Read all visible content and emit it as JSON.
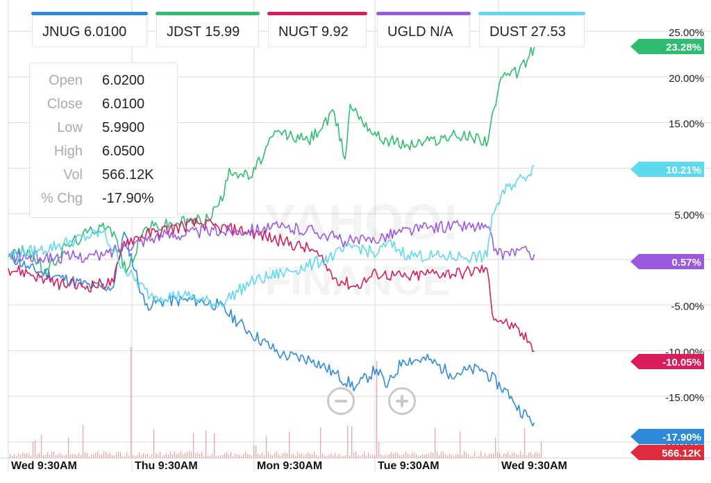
{
  "legend": [
    {
      "symbol": "JNUG",
      "value": "6.0100",
      "color": "#2e8ad8"
    },
    {
      "symbol": "JDST",
      "value": "15.99",
      "color": "#2ebd6e"
    },
    {
      "symbol": "NUGT",
      "value": "9.92",
      "color": "#d81c5c"
    },
    {
      "symbol": "UGLD",
      "value": "N/A",
      "color": "#9b59e0"
    },
    {
      "symbol": "DUST",
      "value": "27.53",
      "color": "#5fd9ee"
    }
  ],
  "ohlc": {
    "rows": [
      {
        "label": "Open",
        "value": "6.0200"
      },
      {
        "label": "Close",
        "value": "6.0100"
      },
      {
        "label": "Low",
        "value": "5.9900"
      },
      {
        "label": "High",
        "value": "6.0500"
      },
      {
        "label": "Vol",
        "value": "566.12K"
      },
      {
        "label": "% Chg",
        "value": "-17.90%"
      }
    ]
  },
  "watermark": {
    "line1": "YAHOO!",
    "line2": "FINANCE"
  },
  "zoom": {
    "out_icon": "minus-circle-icon",
    "in_icon": "plus-circle-icon"
  },
  "chart_data": {
    "type": "line",
    "x_ticks": [
      "Wed 9:30AM",
      "Thu 9:30AM",
      "Mon 9:30AM",
      "Tue 9:30AM",
      "Wed 9:30AM"
    ],
    "y_ticks": [
      "25.00%",
      "20.00%",
      "15.00%",
      "10.00%",
      "5.00%",
      "0.00%",
      "-5.00%",
      "-10.00%",
      "-15.00%",
      "-20.00%"
    ],
    "ylim": [
      -21,
      26
    ],
    "x_range": [
      0,
      5
    ],
    "grid": true,
    "series": [
      {
        "name": "JNUG",
        "color": "#2e8ad8",
        "last_label": "-17.90%",
        "points": [
          [
            0,
            0.5
          ],
          [
            0.2,
            -1
          ],
          [
            0.5,
            -2
          ],
          [
            0.8,
            -3
          ],
          [
            1,
            -3
          ],
          [
            1.1,
            3
          ],
          [
            1.3,
            -5
          ],
          [
            1.5,
            -4.5
          ],
          [
            1.8,
            -4.5
          ],
          [
            2,
            -5
          ],
          [
            2.3,
            -8
          ],
          [
            2.6,
            -10.5
          ],
          [
            2.9,
            -11
          ],
          [
            3.1,
            -12.5
          ],
          [
            3.3,
            -14
          ],
          [
            3.5,
            -12
          ],
          [
            3.6,
            -14
          ],
          [
            3.75,
            -11
          ],
          [
            4,
            -11
          ],
          [
            4.2,
            -12.5
          ],
          [
            4.5,
            -12
          ],
          [
            4.78,
            -15
          ],
          [
            4.82,
            -16
          ],
          [
            5,
            -17.9
          ]
        ]
      },
      {
        "name": "JDST",
        "color": "#2ebd6e",
        "last_label": "23.28%",
        "points": [
          [
            0,
            0.5
          ],
          [
            0.2,
            1
          ],
          [
            0.35,
            -1.5
          ],
          [
            0.55,
            1.5
          ],
          [
            0.7,
            2.5
          ],
          [
            0.9,
            4
          ],
          [
            1.02,
            2.5
          ],
          [
            1.12,
            -1.5
          ],
          [
            1.3,
            3.5
          ],
          [
            1.6,
            4
          ],
          [
            1.9,
            4.5
          ],
          [
            2.05,
            7
          ],
          [
            2.1,
            10
          ],
          [
            2.3,
            9
          ],
          [
            2.55,
            14
          ],
          [
            2.85,
            13
          ],
          [
            3.1,
            16
          ],
          [
            3.2,
            11
          ],
          [
            3.25,
            17
          ],
          [
            3.5,
            13.5
          ],
          [
            3.8,
            12.5
          ],
          [
            4,
            13
          ],
          [
            4.2,
            13.5
          ],
          [
            4.4,
            13.5
          ],
          [
            4.56,
            13
          ],
          [
            4.6,
            16
          ],
          [
            4.7,
            20
          ],
          [
            4.85,
            20.5
          ],
          [
            5,
            23.28
          ]
        ]
      },
      {
        "name": "NUGT",
        "color": "#d81c5c",
        "last_label": "-10.05%",
        "points": [
          [
            0,
            -1
          ],
          [
            0.2,
            -1.5
          ],
          [
            0.4,
            -2.5
          ],
          [
            0.7,
            -3
          ],
          [
            1,
            -2.5
          ],
          [
            1.1,
            2
          ],
          [
            1.4,
            3
          ],
          [
            1.8,
            4
          ],
          [
            2,
            3.5
          ],
          [
            2.3,
            3
          ],
          [
            2.6,
            2
          ],
          [
            2.9,
            1
          ],
          [
            3.1,
            -2
          ],
          [
            3.3,
            -3
          ],
          [
            3.5,
            -1.5
          ],
          [
            3.8,
            -2
          ],
          [
            4,
            -1.5
          ],
          [
            4.3,
            -1.5
          ],
          [
            4.55,
            -1
          ],
          [
            4.6,
            -6
          ],
          [
            4.8,
            -7.5
          ],
          [
            4.95,
            -9
          ],
          [
            5,
            -10.05
          ]
        ]
      },
      {
        "name": "UGLD",
        "color": "#9b59e0",
        "last_label": "0.57%",
        "points": [
          [
            0,
            0.3
          ],
          [
            0.3,
            0.2
          ],
          [
            0.6,
            0.3
          ],
          [
            0.9,
            0.4
          ],
          [
            1.1,
            1.5
          ],
          [
            1.4,
            2.5
          ],
          [
            1.8,
            3
          ],
          [
            2.2,
            3.2
          ],
          [
            2.5,
            3.5
          ],
          [
            2.9,
            3.2
          ],
          [
            3.2,
            2
          ],
          [
            3.4,
            2
          ],
          [
            3.7,
            3
          ],
          [
            4,
            3.5
          ],
          [
            4.3,
            3.7
          ],
          [
            4.55,
            3.5
          ],
          [
            4.65,
            0.5
          ],
          [
            4.85,
            1
          ],
          [
            5,
            0.57
          ]
        ]
      },
      {
        "name": "DUST",
        "color": "#5fd9ee",
        "last_label": "10.21%",
        "points": [
          [
            0,
            0.5
          ],
          [
            0.3,
            1
          ],
          [
            0.6,
            2
          ],
          [
            0.9,
            3
          ],
          [
            1.1,
            -1
          ],
          [
            1.35,
            -4
          ],
          [
            1.7,
            -4
          ],
          [
            2,
            -5
          ],
          [
            2.3,
            -2.5
          ],
          [
            2.6,
            -1.5
          ],
          [
            2.9,
            -0.5
          ],
          [
            3.1,
            0.5
          ],
          [
            3.3,
            1.5
          ],
          [
            3.5,
            0.5
          ],
          [
            3.6,
            1.8
          ],
          [
            3.8,
            0.5
          ],
          [
            4.1,
            0.3
          ],
          [
            4.3,
            0.3
          ],
          [
            4.55,
            0.3
          ],
          [
            4.6,
            5
          ],
          [
            4.75,
            8
          ],
          [
            4.9,
            9
          ],
          [
            5,
            10.21
          ]
        ]
      }
    ],
    "volume": {
      "color": "#f08080",
      "last_label": "566.12K",
      "label_color": "#e02b3c"
    }
  }
}
